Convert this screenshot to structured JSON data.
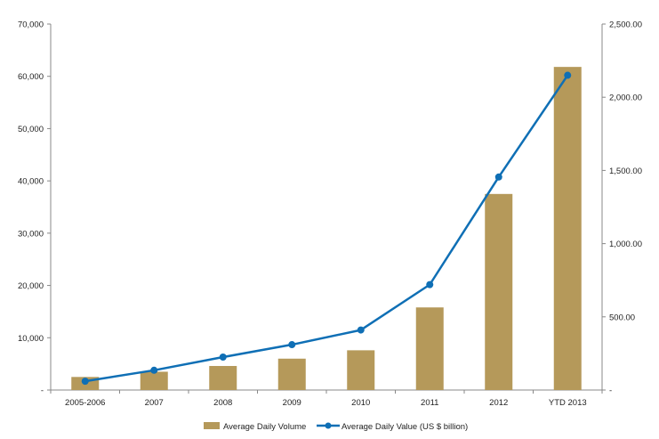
{
  "chart_data": {
    "type": "bar+line",
    "categories": [
      "2005-2006",
      "2007",
      "2008",
      "2009",
      "2010",
      "2011",
      "2012",
      "YTD 2013"
    ],
    "series": [
      {
        "name": "Average Daily Volume",
        "type": "bar",
        "axis": "left",
        "color": "#b5995a",
        "values": [
          2500,
          3500,
          4600,
          6000,
          7600,
          15800,
          37500,
          61800
        ]
      },
      {
        "name": "Average Daily Value (US $  billion)",
        "type": "line",
        "axis": "right",
        "color": "#0f6fb5",
        "values": [
          60,
          135,
          225,
          310,
          410,
          720,
          1455,
          2150
        ]
      }
    ],
    "left_axis": {
      "ylim": [
        0,
        70000
      ],
      "ticks": [
        0,
        10000,
        20000,
        30000,
        40000,
        50000,
        60000,
        70000
      ],
      "tick_labels": [
        "-",
        "10,000",
        "20,000",
        "30,000",
        "40,000",
        "50,000",
        "60,000",
        "70,000"
      ]
    },
    "right_axis": {
      "ylim": [
        0,
        2500
      ],
      "ticks": [
        0,
        500,
        1000,
        1500,
        2000,
        2500
      ],
      "tick_labels": [
        "-",
        "500.00",
        "1,000.00",
        "1,500.00",
        "2,000.00",
        "2,500.00"
      ]
    },
    "grid": false,
    "legend_position": "bottom"
  }
}
